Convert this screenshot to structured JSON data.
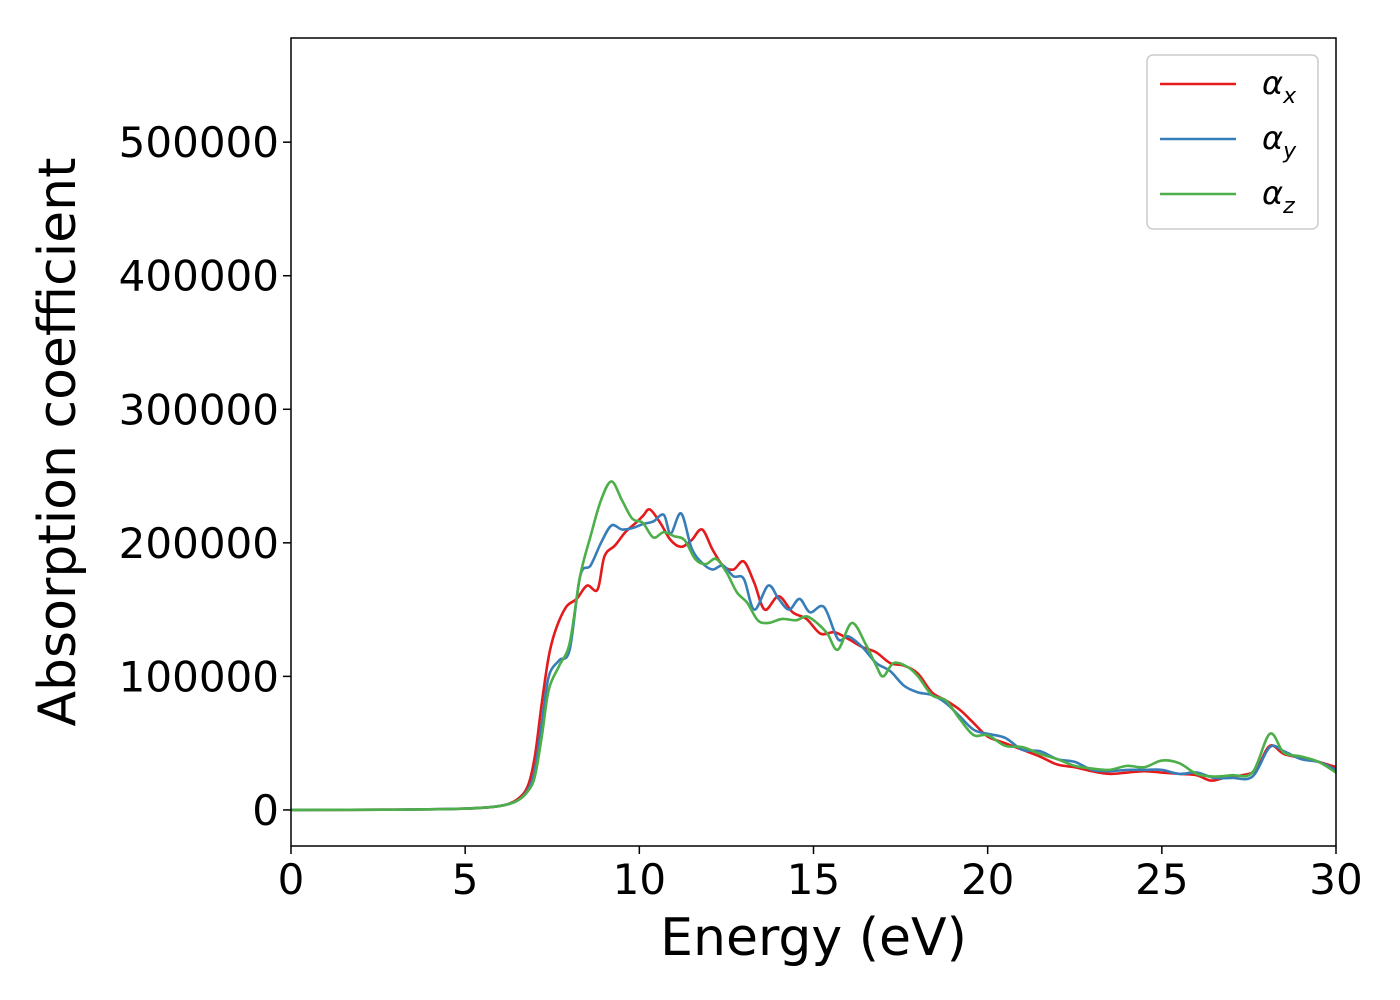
{
  "chart_data": {
    "type": "line",
    "xlabel": "Energy (eV)",
    "ylabel": "Absorption coefficient",
    "xlim": [
      0,
      30
    ],
    "ylim": [
      -27000,
      578000
    ],
    "xticks": [
      0,
      5,
      10,
      15,
      20,
      25,
      30
    ],
    "yticks": [
      0,
      100000,
      200000,
      300000,
      400000,
      500000
    ],
    "xtick_labels": [
      "0",
      "5",
      "10",
      "15",
      "20",
      "25",
      "30"
    ],
    "ytick_labels": [
      "0",
      "100000",
      "200000",
      "300000",
      "400000",
      "500000"
    ],
    "grid": false,
    "legend_position": "top-right",
    "series": [
      {
        "name": "α",
        "subscript": "x",
        "color": "#e41a1c",
        "points": [
          [
            0,
            0
          ],
          [
            3,
            200
          ],
          [
            5,
            1000
          ],
          [
            6,
            3000
          ],
          [
            6.5,
            8000
          ],
          [
            6.8,
            18000
          ],
          [
            7,
            40000
          ],
          [
            7.2,
            80000
          ],
          [
            7.4,
            115000
          ],
          [
            7.6,
            135000
          ],
          [
            7.9,
            152000
          ],
          [
            8.2,
            158000
          ],
          [
            8.5,
            168000
          ],
          [
            8.8,
            165000
          ],
          [
            9.0,
            190000
          ],
          [
            9.3,
            198000
          ],
          [
            9.6,
            208000
          ],
          [
            9.9,
            215000
          ],
          [
            10.1,
            220000
          ],
          [
            10.3,
            225000
          ],
          [
            10.6,
            215000
          ],
          [
            10.9,
            202000
          ],
          [
            11.2,
            197000
          ],
          [
            11.5,
            202000
          ],
          [
            11.8,
            210000
          ],
          [
            12.1,
            195000
          ],
          [
            12.4,
            183000
          ],
          [
            12.7,
            180000
          ],
          [
            13.0,
            186000
          ],
          [
            13.3,
            170000
          ],
          [
            13.6,
            150000
          ],
          [
            14.0,
            160000
          ],
          [
            14.4,
            148000
          ],
          [
            14.8,
            143000
          ],
          [
            15.2,
            132000
          ],
          [
            15.6,
            133000
          ],
          [
            16.0,
            128000
          ],
          [
            16.4,
            122000
          ],
          [
            16.8,
            118000
          ],
          [
            17.2,
            110000
          ],
          [
            17.6,
            108000
          ],
          [
            18.0,
            102000
          ],
          [
            18.4,
            88000
          ],
          [
            18.8,
            82000
          ],
          [
            19.2,
            75000
          ],
          [
            19.6,
            65000
          ],
          [
            20.0,
            55000
          ],
          [
            20.5,
            50000
          ],
          [
            21.0,
            45000
          ],
          [
            21.5,
            40000
          ],
          [
            22.0,
            34000
          ],
          [
            22.5,
            32000
          ],
          [
            23.0,
            29000
          ],
          [
            23.5,
            27000
          ],
          [
            24.0,
            28000
          ],
          [
            24.5,
            29000
          ],
          [
            25.0,
            28000
          ],
          [
            25.5,
            27000
          ],
          [
            26.0,
            26000
          ],
          [
            26.4,
            22000
          ],
          [
            26.8,
            24000
          ],
          [
            27.3,
            26000
          ],
          [
            27.7,
            30000
          ],
          [
            28.1,
            48000
          ],
          [
            28.5,
            42000
          ],
          [
            29.0,
            39000
          ],
          [
            29.5,
            36000
          ],
          [
            30,
            32000
          ]
        ]
      },
      {
        "name": "α",
        "subscript": "y",
        "color": "#377eb8",
        "points": [
          [
            0,
            0
          ],
          [
            3,
            200
          ],
          [
            5,
            1000
          ],
          [
            6,
            3000
          ],
          [
            6.5,
            7000
          ],
          [
            6.8,
            15000
          ],
          [
            7,
            30000
          ],
          [
            7.2,
            65000
          ],
          [
            7.4,
            100000
          ],
          [
            7.7,
            112000
          ],
          [
            8.0,
            120000
          ],
          [
            8.3,
            175000
          ],
          [
            8.6,
            183000
          ],
          [
            8.9,
            200000
          ],
          [
            9.2,
            213000
          ],
          [
            9.5,
            210000
          ],
          [
            9.8,
            211000
          ],
          [
            10.1,
            214000
          ],
          [
            10.4,
            216000
          ],
          [
            10.7,
            221000
          ],
          [
            10.9,
            207000
          ],
          [
            11.2,
            222000
          ],
          [
            11.5,
            196000
          ],
          [
            11.8,
            185000
          ],
          [
            12.1,
            180000
          ],
          [
            12.4,
            183000
          ],
          [
            12.7,
            175000
          ],
          [
            13.0,
            173000
          ],
          [
            13.3,
            150000
          ],
          [
            13.7,
            168000
          ],
          [
            14.0,
            158000
          ],
          [
            14.3,
            150000
          ],
          [
            14.6,
            158000
          ],
          [
            14.9,
            148000
          ],
          [
            15.3,
            152000
          ],
          [
            15.7,
            128000
          ],
          [
            16.0,
            130000
          ],
          [
            16.4,
            122000
          ],
          [
            16.8,
            110000
          ],
          [
            17.2,
            104000
          ],
          [
            17.6,
            93000
          ],
          [
            18.0,
            88000
          ],
          [
            18.4,
            86000
          ],
          [
            18.8,
            80000
          ],
          [
            19.2,
            70000
          ],
          [
            19.6,
            60000
          ],
          [
            20.0,
            57000
          ],
          [
            20.5,
            54000
          ],
          [
            21.0,
            45000
          ],
          [
            21.5,
            44000
          ],
          [
            22.0,
            38000
          ],
          [
            22.5,
            36000
          ],
          [
            23.0,
            30000
          ],
          [
            23.5,
            29000
          ],
          [
            24.0,
            30000
          ],
          [
            24.5,
            30000
          ],
          [
            25.0,
            30000
          ],
          [
            25.5,
            27000
          ],
          [
            26.0,
            28000
          ],
          [
            26.5,
            24000
          ],
          [
            27.0,
            24000
          ],
          [
            27.6,
            25000
          ],
          [
            28.1,
            47000
          ],
          [
            28.5,
            44000
          ],
          [
            29.0,
            38000
          ],
          [
            29.5,
            36000
          ],
          [
            30,
            30000
          ]
        ]
      },
      {
        "name": "α",
        "subscript": "z",
        "color": "#4daf4a",
        "points": [
          [
            0,
            0
          ],
          [
            3,
            200
          ],
          [
            5,
            1000
          ],
          [
            6,
            3000
          ],
          [
            6.5,
            7000
          ],
          [
            6.8,
            14000
          ],
          [
            7,
            25000
          ],
          [
            7.2,
            55000
          ],
          [
            7.4,
            90000
          ],
          [
            7.7,
            108000
          ],
          [
            8.0,
            125000
          ],
          [
            8.3,
            175000
          ],
          [
            8.6,
            205000
          ],
          [
            8.9,
            232000
          ],
          [
            9.2,
            246000
          ],
          [
            9.5,
            232000
          ],
          [
            9.8,
            218000
          ],
          [
            10.1,
            215000
          ],
          [
            10.4,
            204000
          ],
          [
            10.7,
            208000
          ],
          [
            11.0,
            205000
          ],
          [
            11.3,
            202000
          ],
          [
            11.6,
            188000
          ],
          [
            11.9,
            184000
          ],
          [
            12.2,
            188000
          ],
          [
            12.5,
            178000
          ],
          [
            12.8,
            163000
          ],
          [
            13.1,
            155000
          ],
          [
            13.4,
            142000
          ],
          [
            13.7,
            140000
          ],
          [
            14.1,
            143000
          ],
          [
            14.5,
            142000
          ],
          [
            14.8,
            145000
          ],
          [
            15.1,
            140000
          ],
          [
            15.4,
            132000
          ],
          [
            15.7,
            120000
          ],
          [
            16.1,
            140000
          ],
          [
            16.5,
            124000
          ],
          [
            16.8,
            108000
          ],
          [
            17.0,
            100000
          ],
          [
            17.3,
            110000
          ],
          [
            17.7,
            107000
          ],
          [
            18.0,
            100000
          ],
          [
            18.4,
            86000
          ],
          [
            18.8,
            82000
          ],
          [
            19.2,
            68000
          ],
          [
            19.6,
            56000
          ],
          [
            20.0,
            56000
          ],
          [
            20.5,
            48000
          ],
          [
            21.0,
            47000
          ],
          [
            21.5,
            42000
          ],
          [
            22.0,
            38000
          ],
          [
            22.5,
            33000
          ],
          [
            23.0,
            31000
          ],
          [
            23.5,
            30000
          ],
          [
            24.0,
            33000
          ],
          [
            24.5,
            32000
          ],
          [
            25.0,
            37000
          ],
          [
            25.5,
            35000
          ],
          [
            26.0,
            27000
          ],
          [
            26.5,
            25000
          ],
          [
            27.0,
            26000
          ],
          [
            27.6,
            28000
          ],
          [
            28.1,
            57000
          ],
          [
            28.5,
            43000
          ],
          [
            29.0,
            40000
          ],
          [
            29.5,
            36000
          ],
          [
            30,
            28000
          ]
        ]
      }
    ]
  }
}
